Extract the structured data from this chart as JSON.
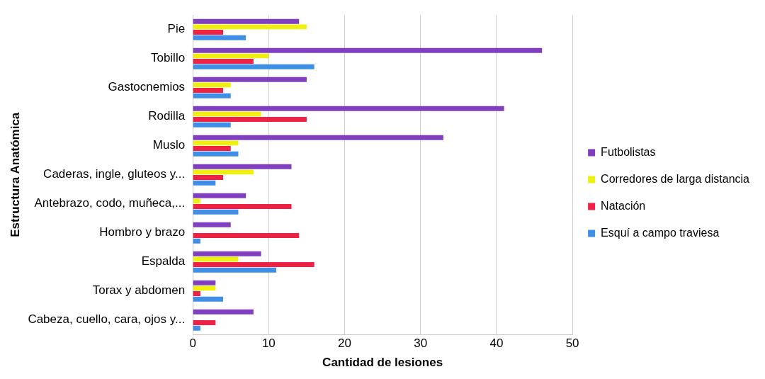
{
  "chart_data": {
    "type": "bar",
    "orientation": "horizontal",
    "xlabel": "Cantidad de lesiones",
    "ylabel": "Estructura Anatómica",
    "categories": [
      "Pie",
      "Tobillo",
      "Gastocnemios",
      "Rodilla",
      "Muslo",
      "Caderas, ingle, gluteos y...",
      "Antebrazo, codo, muñeca,...",
      "Hombro y brazo",
      "Espalda",
      "Torax y abdomen",
      "Cabeza, cuello, cara, ojos y..."
    ],
    "series": [
      {
        "name": "Futbolistas",
        "color": "#7f3fbf",
        "values": [
          14,
          46,
          15,
          41,
          33,
          13,
          7,
          5,
          9,
          3,
          8
        ]
      },
      {
        "name": "Corredores de larga distancia",
        "color": "#f0f010",
        "values": [
          15,
          10,
          5,
          9,
          6,
          8,
          1,
          0,
          6,
          3,
          0
        ]
      },
      {
        "name": "Natación",
        "color": "#ee2244",
        "values": [
          4,
          8,
          4,
          15,
          5,
          4,
          13,
          14,
          16,
          1,
          3
        ]
      },
      {
        "name": "Esquí a campo traviesa",
        "color": "#3f8fe6",
        "values": [
          7,
          16,
          5,
          5,
          6,
          3,
          6,
          1,
          11,
          4,
          1
        ]
      }
    ],
    "xlim": [
      0,
      50
    ],
    "xticks": [
      0,
      10,
      20,
      30,
      40,
      50
    ],
    "grid": "x",
    "legend": "right"
  }
}
